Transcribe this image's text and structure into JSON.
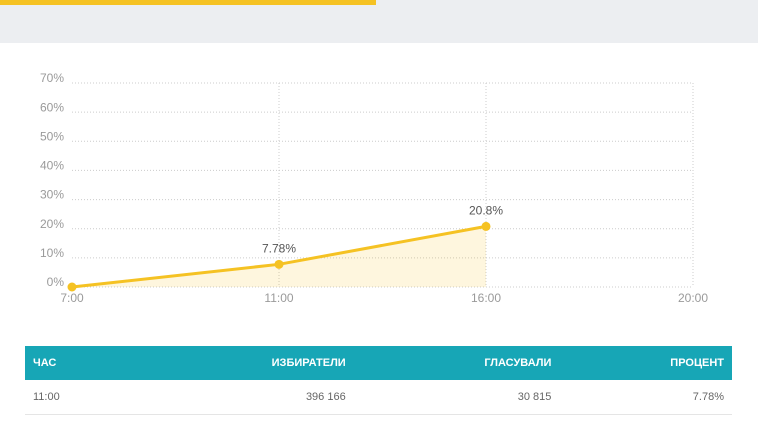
{
  "chart_data": {
    "type": "line",
    "categories": [
      "7:00",
      "11:00",
      "16:00",
      "20:00"
    ],
    "values": [
      0,
      7.78,
      20.8,
      null
    ],
    "value_labels": [
      null,
      "7.78%",
      "20.8%",
      null
    ],
    "color": "#f5c223",
    "area": true,
    "ylim": [
      0,
      70
    ],
    "yticks": [
      {
        "value": 0,
        "label": "0%"
      },
      {
        "value": 10,
        "label": "10%"
      },
      {
        "value": 20,
        "label": "20%"
      },
      {
        "value": 30,
        "label": "30%"
      },
      {
        "value": 40,
        "label": "40%"
      },
      {
        "value": 50,
        "label": "50%"
      },
      {
        "value": 60,
        "label": "60%"
      },
      {
        "value": 70,
        "label": "70%"
      }
    ],
    "grid": true
  },
  "table": {
    "columns": [
      "ЧАС",
      "ИЗБИРАТЕЛИ",
      "ГЛАСУВАЛИ",
      "ПРОЦЕНТ"
    ],
    "rows": [
      [
        "11:00",
        "396 166",
        "30 815",
        "7.78%"
      ]
    ]
  }
}
